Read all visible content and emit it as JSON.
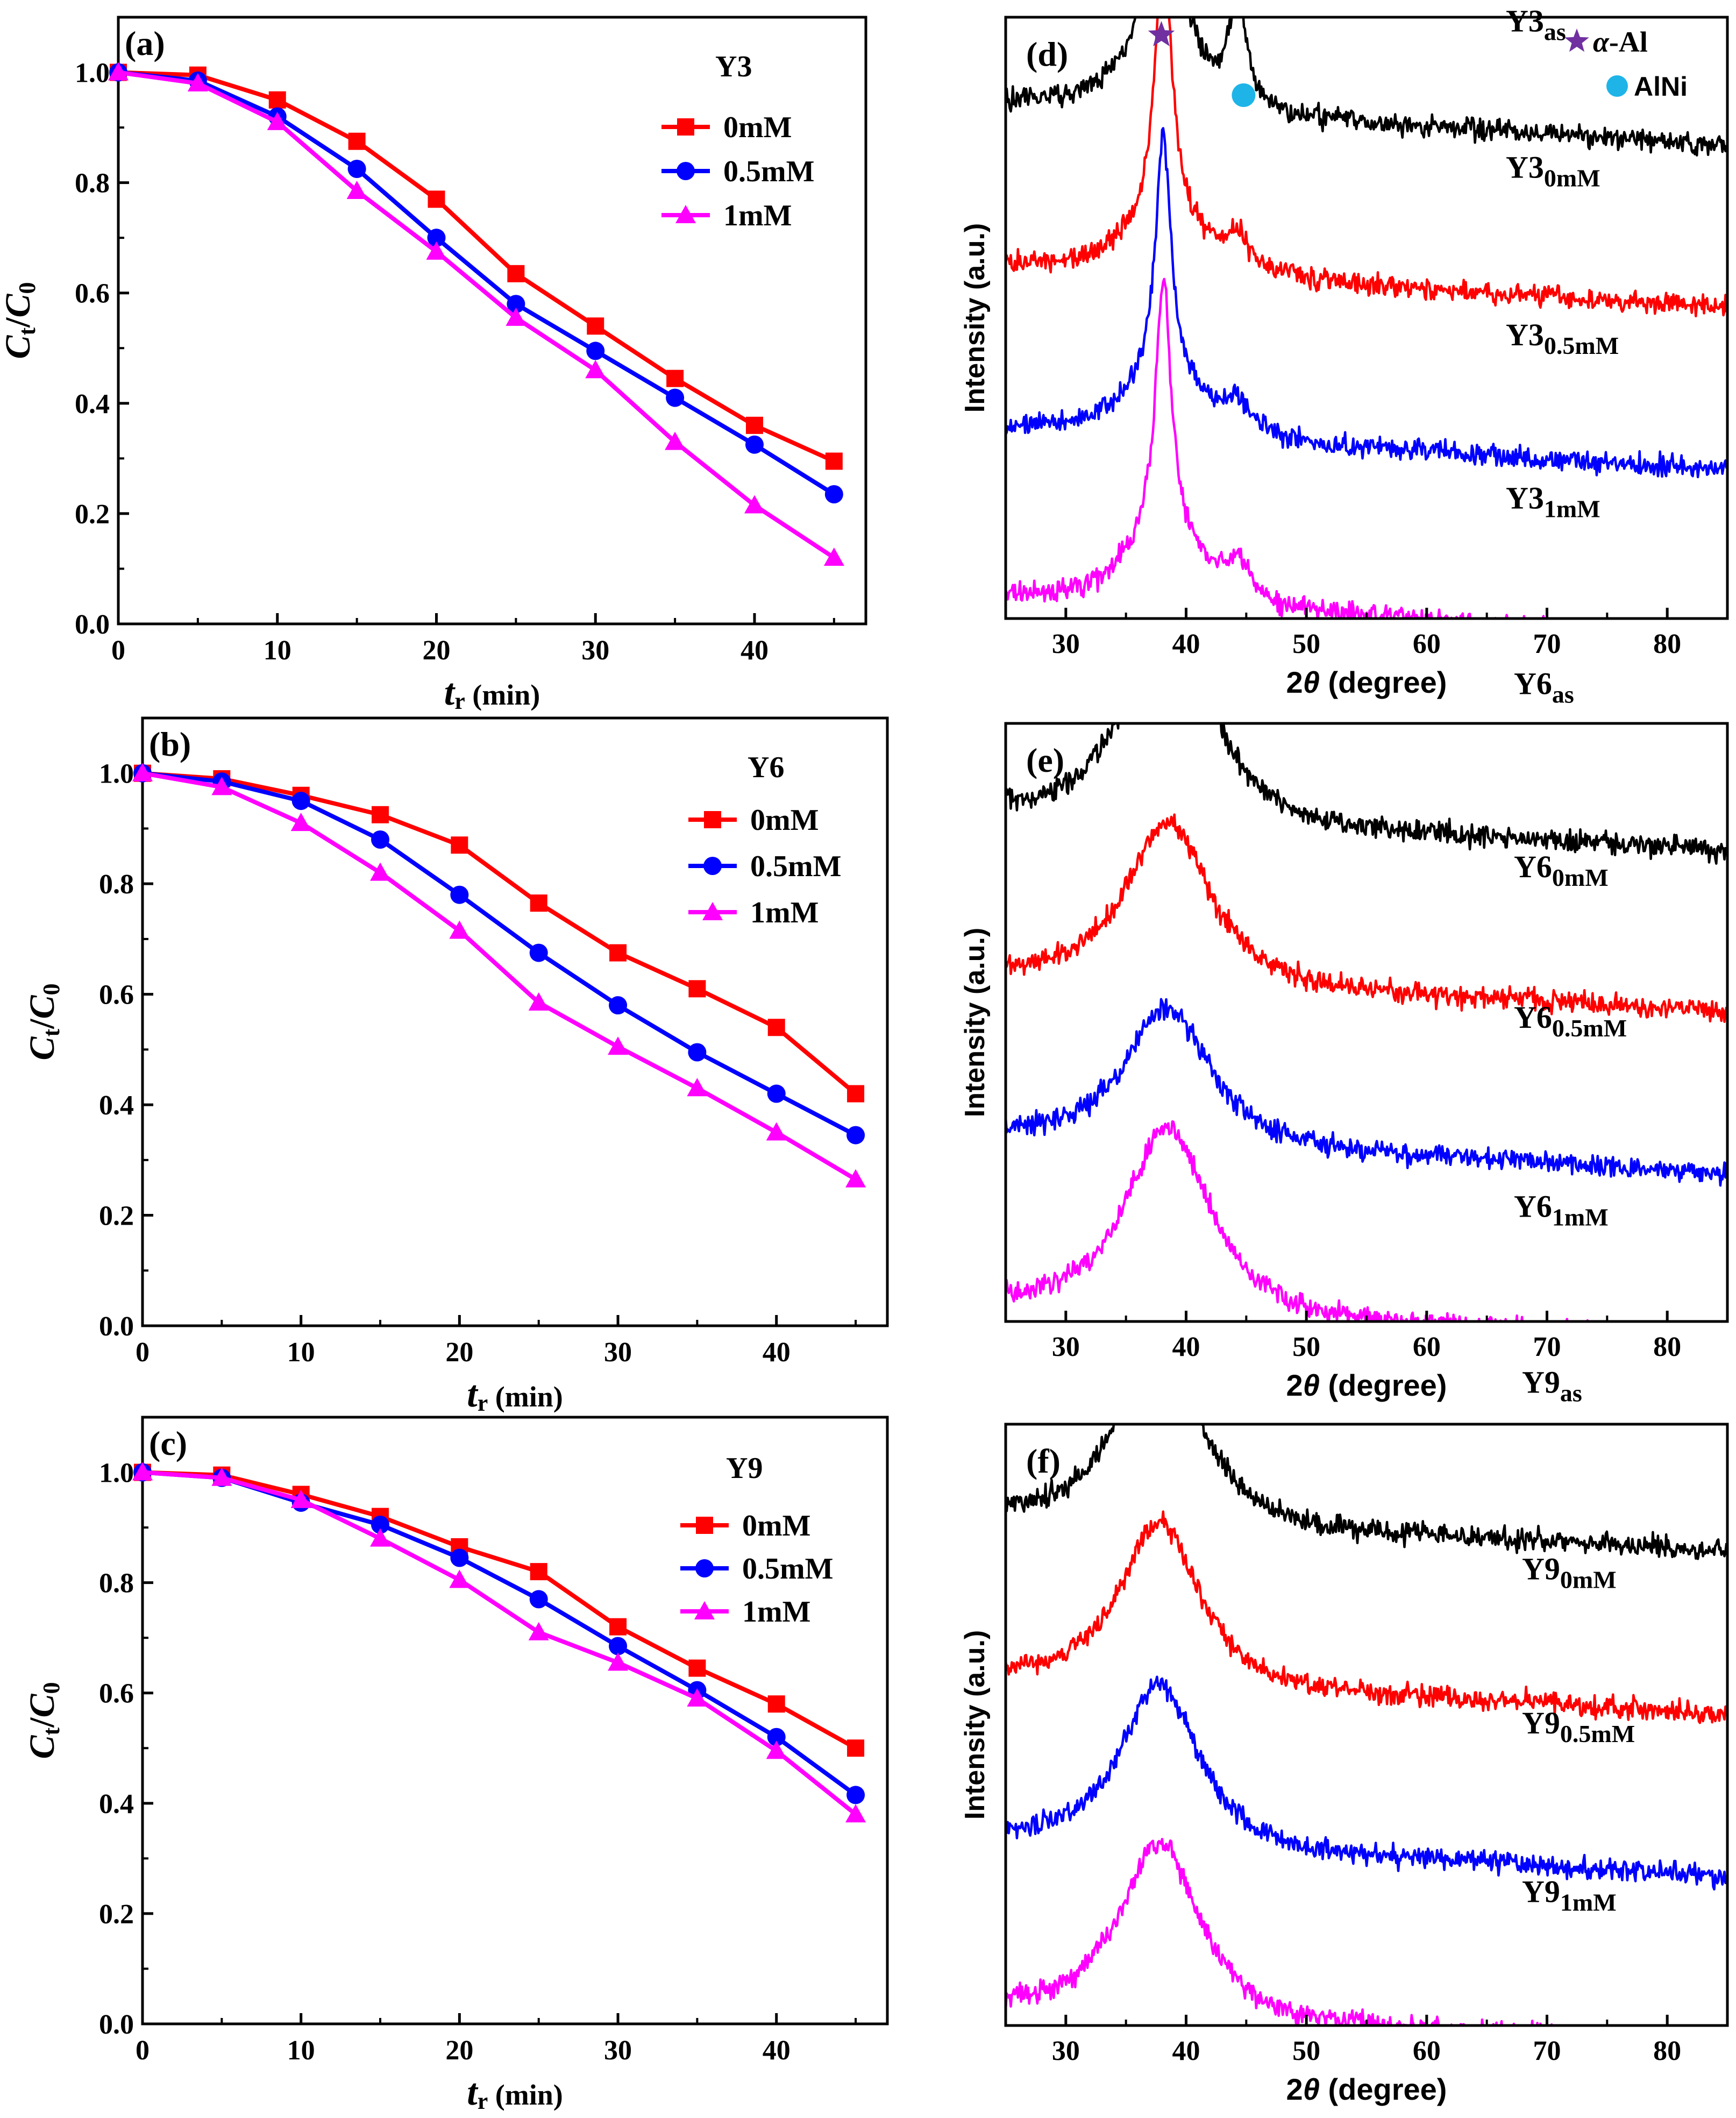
{
  "colors": {
    "0mM": "#ff0000",
    "0.5mM": "#0000ff",
    "1mM": "#ff00ff",
    "as": "#000000",
    "alpha_al": "#7030a0",
    "alni": "#1eb4e8"
  },
  "chart_data": [
    {
      "panel": "(a)",
      "type": "line",
      "group": "Y3",
      "xlabel_main": "t",
      "xlabel_sub": "r",
      "xlabel_unit": "(min)",
      "ylabel_main": "C",
      "ylabel_sub_top": "t",
      "ylabel_slash": "/",
      "ylabel_den": "C",
      "ylabel_sub_bot": "0",
      "xlim": [
        0,
        47
      ],
      "ylim": [
        0,
        1.1
      ],
      "xticks": [
        0,
        10,
        20,
        30,
        40
      ],
      "xtick_labels": [
        "0",
        "10",
        "20",
        "30",
        "40"
      ],
      "yticks": [
        0,
        0.2,
        0.4,
        0.6,
        0.8,
        1.0
      ],
      "ytick_labels": [
        "0.0",
        "0.2",
        "0.4",
        "0.6",
        "0.8",
        "1.0"
      ],
      "x": [
        0,
        5,
        10,
        15,
        20,
        25,
        30,
        35,
        40,
        45
      ],
      "series": [
        {
          "name": "0mM",
          "marker": "square",
          "values": [
            1.0,
            0.995,
            0.95,
            0.875,
            0.77,
            0.635,
            0.54,
            0.445,
            0.36,
            0.295
          ]
        },
        {
          "name": "0.5mM",
          "marker": "circle",
          "values": [
            1.0,
            0.985,
            0.92,
            0.825,
            0.7,
            0.58,
            0.495,
            0.41,
            0.325,
            0.235
          ]
        },
        {
          "name": "1mM",
          "marker": "triangle",
          "values": [
            1.0,
            0.98,
            0.91,
            0.785,
            0.675,
            0.555,
            0.46,
            0.33,
            0.215,
            0.12
          ]
        }
      ]
    },
    {
      "panel": "(b)",
      "type": "line",
      "group": "Y6",
      "xlabel_main": "t",
      "xlabel_sub": "r",
      "xlabel_unit": "(min)",
      "ylabel_main": "C",
      "ylabel_sub_top": "t",
      "ylabel_slash": "/",
      "ylabel_den": "C",
      "ylabel_sub_bot": "0",
      "xlim": [
        0,
        47
      ],
      "ylim": [
        0,
        1.1
      ],
      "xticks": [
        0,
        10,
        20,
        30,
        40
      ],
      "xtick_labels": [
        "0",
        "10",
        "20",
        "30",
        "40"
      ],
      "yticks": [
        0,
        0.2,
        0.4,
        0.6,
        0.8,
        1.0
      ],
      "ytick_labels": [
        "0.0",
        "0.2",
        "0.4",
        "0.6",
        "0.8",
        "1.0"
      ],
      "x": [
        0,
        5,
        10,
        15,
        20,
        25,
        30,
        35,
        40,
        45
      ],
      "series": [
        {
          "name": "0mM",
          "marker": "square",
          "values": [
            1.0,
            0.99,
            0.96,
            0.925,
            0.87,
            0.765,
            0.675,
            0.61,
            0.54,
            0.42
          ]
        },
        {
          "name": "0.5mM",
          "marker": "circle",
          "values": [
            1.0,
            0.985,
            0.95,
            0.88,
            0.78,
            0.675,
            0.58,
            0.495,
            0.42,
            0.345
          ]
        },
        {
          "name": "1mM",
          "marker": "triangle",
          "values": [
            1.0,
            0.975,
            0.91,
            0.82,
            0.715,
            0.585,
            0.505,
            0.43,
            0.35,
            0.265
          ]
        }
      ]
    },
    {
      "panel": "(c)",
      "type": "line",
      "group": "Y9",
      "xlabel_main": "t",
      "xlabel_sub": "r",
      "xlabel_unit": "(min)",
      "ylabel_main": "C",
      "ylabel_sub_top": "t",
      "ylabel_slash": "/",
      "ylabel_den": "C",
      "ylabel_sub_bot": "0",
      "xlim": [
        0,
        47
      ],
      "ylim": [
        0,
        1.1
      ],
      "xticks": [
        0,
        10,
        20,
        30,
        40
      ],
      "xtick_labels": [
        "0",
        "10",
        "20",
        "30",
        "40"
      ],
      "yticks": [
        0,
        0.2,
        0.4,
        0.6,
        0.8,
        1.0
      ],
      "ytick_labels": [
        "0.0",
        "0.2",
        "0.4",
        "0.6",
        "0.8",
        "1.0"
      ],
      "x": [
        0,
        5,
        10,
        15,
        20,
        25,
        30,
        35,
        40,
        45
      ],
      "series": [
        {
          "name": "0mM",
          "marker": "square",
          "values": [
            1.0,
            0.995,
            0.96,
            0.92,
            0.865,
            0.82,
            0.72,
            0.645,
            0.58,
            0.5
          ]
        },
        {
          "name": "0.5mM",
          "marker": "circle",
          "values": [
            1.0,
            0.99,
            0.945,
            0.905,
            0.845,
            0.77,
            0.685,
            0.605,
            0.52,
            0.415
          ]
        },
        {
          "name": "1mM",
          "marker": "triangle",
          "values": [
            1.0,
            0.99,
            0.95,
            0.88,
            0.805,
            0.71,
            0.655,
            0.59,
            0.495,
            0.38
          ]
        }
      ]
    },
    {
      "panel": "(d)",
      "type": "line",
      "subtype": "xrd",
      "xlabel_pre": "2",
      "xlabel_theta": "θ",
      "xlabel_unit": "(degree)",
      "ylabel": "Intensity (a.u.)",
      "xlim": [
        25,
        85
      ],
      "xticks": [
        30,
        40,
        50,
        60,
        70,
        80
      ],
      "xtick_labels": [
        "30",
        "40",
        "50",
        "60",
        "70",
        "80"
      ],
      "legend": [
        {
          "symbol": "star",
          "label_italic": "α",
          "label_rest": "-Al"
        },
        {
          "symbol": "circle",
          "label_italic": "",
          "label_rest": "AlNi"
        }
      ],
      "phase_markers": [
        {
          "phase": "alpha-Al",
          "two_theta": 38.3
        },
        {
          "phase": "AlNi",
          "two_theta": 44.6
        }
      ],
      "series": [
        {
          "name": "as",
          "label_main": "Y3",
          "label_sub": "as",
          "baseline": 0.86,
          "peaks": [
            {
              "center": 38.1,
              "height": 0.7,
              "width": 0.75
            },
            {
              "center": 38.2,
              "height": 0.12,
              "width": 4.0
            },
            {
              "center": 44.3,
              "height": 0.2,
              "width": 0.7
            }
          ]
        },
        {
          "name": "0mM",
          "label_main": "Y3",
          "label_sub": "0mM",
          "baseline": 0.59,
          "peaks": [
            {
              "center": 38.1,
              "height": 0.47,
              "width": 0.75
            },
            {
              "center": 38.2,
              "height": 0.1,
              "width": 4.0
            },
            {
              "center": 44.3,
              "height": 0.05,
              "width": 1.2
            }
          ]
        },
        {
          "name": "0.5mM",
          "label_main": "Y3",
          "label_sub": "0.5mM",
          "baseline": 0.32,
          "peaks": [
            {
              "center": 38.1,
              "height": 0.4,
              "width": 0.75
            },
            {
              "center": 38.2,
              "height": 0.1,
              "width": 4.0
            },
            {
              "center": 44.3,
              "height": 0.05,
              "width": 1.2
            }
          ]
        },
        {
          "name": "1mM",
          "label_main": "Y3",
          "label_sub": "1mM",
          "baseline": 0.04,
          "peaks": [
            {
              "center": 38.1,
              "height": 0.42,
              "width": 0.75
            },
            {
              "center": 38.2,
              "height": 0.12,
              "width": 4.0
            },
            {
              "center": 44.3,
              "height": 0.06,
              "width": 1.2
            }
          ]
        }
      ]
    },
    {
      "panel": "(e)",
      "type": "line",
      "subtype": "xrd",
      "xlabel_pre": "2",
      "xlabel_theta": "θ",
      "xlabel_unit": "(degree)",
      "ylabel": "Intensity (a.u.)",
      "xlim": [
        25,
        85
      ],
      "xticks": [
        30,
        40,
        50,
        60,
        70,
        80
      ],
      "xtick_labels": [
        "30",
        "40",
        "50",
        "60",
        "70",
        "80"
      ],
      "series": [
        {
          "name": "as",
          "label_main": "Y6",
          "label_sub": "as",
          "baseline": 0.86,
          "peaks": [
            {
              "center": 38.5,
              "height": 0.34,
              "width": 4.6
            }
          ]
        },
        {
          "name": "0mM",
          "label_main": "Y6",
          "label_sub": "0mM",
          "baseline": 0.59,
          "peaks": [
            {
              "center": 38.5,
              "height": 0.26,
              "width": 4.6
            }
          ]
        },
        {
          "name": "0.5mM",
          "label_main": "Y6",
          "label_sub": "0.5mM",
          "baseline": 0.32,
          "peaks": [
            {
              "center": 38.5,
              "height": 0.22,
              "width": 4.6
            }
          ]
        },
        {
          "name": "1mM",
          "label_main": "Y6",
          "label_sub": "1mM",
          "baseline": 0.04,
          "peaks": [
            {
              "center": 38.5,
              "height": 0.3,
              "width": 4.6
            }
          ]
        }
      ]
    },
    {
      "panel": "(f)",
      "type": "line",
      "subtype": "xrd",
      "xlabel_pre": "2",
      "xlabel_theta": "θ",
      "xlabel_unit": "(degree)",
      "ylabel": "Intensity (a.u.)",
      "xlim": [
        25,
        85
      ],
      "xticks": [
        30,
        40,
        50,
        60,
        70,
        80
      ],
      "xtick_labels": [
        "30",
        "40",
        "50",
        "60",
        "70",
        "80"
      ],
      "series": [
        {
          "name": "as",
          "label_main": "Y9",
          "label_sub": "as",
          "baseline": 0.86,
          "peaks": [
            {
              "center": 37.8,
              "height": 0.3,
              "width": 4.3
            }
          ]
        },
        {
          "name": "0mM",
          "label_main": "Y9",
          "label_sub": "0mM",
          "baseline": 0.59,
          "peaks": [
            {
              "center": 37.8,
              "height": 0.26,
              "width": 4.3
            }
          ]
        },
        {
          "name": "0.5mM",
          "label_main": "Y9",
          "label_sub": "0.5mM",
          "baseline": 0.32,
          "peaks": [
            {
              "center": 37.8,
              "height": 0.26,
              "width": 4.3
            }
          ]
        },
        {
          "name": "1mM",
          "label_main": "Y9",
          "label_sub": "1mM",
          "baseline": 0.04,
          "peaks": [
            {
              "center": 37.8,
              "height": 0.28,
              "width": 4.3
            }
          ]
        }
      ]
    }
  ]
}
